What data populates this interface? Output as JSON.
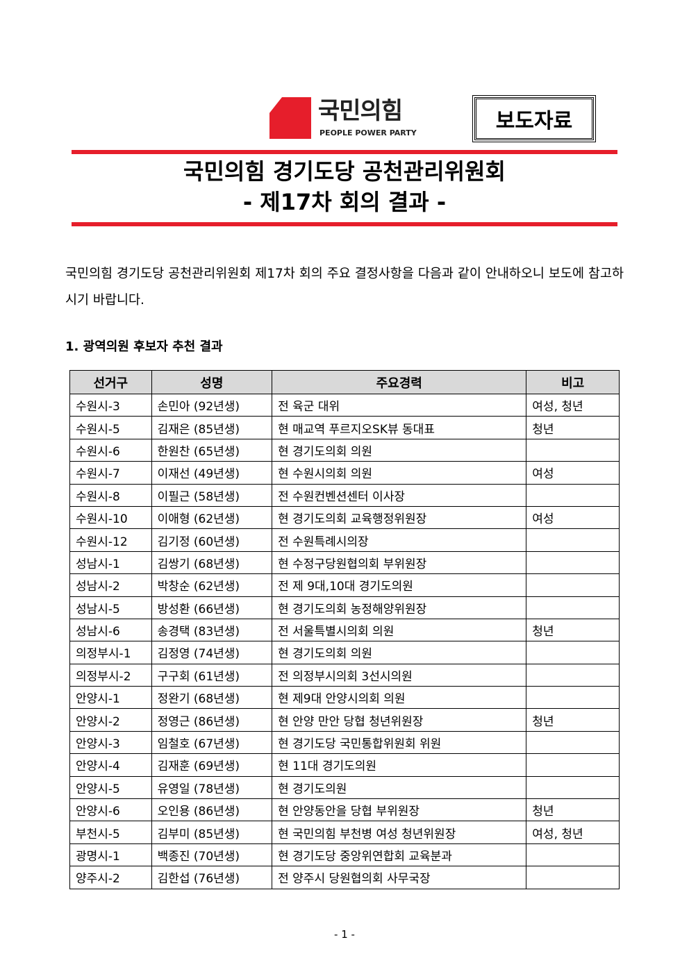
{
  "logo": {
    "name_kr": "국민의힘",
    "name_en": "PEOPLE POWER PARTY",
    "color": "#e61e2b"
  },
  "press_label": "보도자료",
  "title": {
    "line1": "국민의힘 경기도당 공천관리위원회",
    "line2": "- 제17차 회의 결과 -"
  },
  "intro": "국민의힘 경기도당 공천관리위원회 제17차 회의 주요 결정사항을 다음과 같이 안내하오니 보도에 참고하시기 바랍니다.",
  "section_heading": "1. 광역의원 후보자 추천 결과",
  "table": {
    "headers": [
      "선거구",
      "성명",
      "주요경력",
      "비고"
    ],
    "rows": [
      [
        "수원시-3",
        "손민아 (92년생)",
        "전 육군 대위",
        "여성, 청년"
      ],
      [
        "수원시-5",
        "김재은 (85년생)",
        "현 매교역 푸르지오SK뷰 동대표",
        "청년"
      ],
      [
        "수원시-6",
        "한원찬 (65년생)",
        "현 경기도의회 의원",
        ""
      ],
      [
        "수원시-7",
        "이재선 (49년생)",
        "현 수원시의회 의원",
        "여성"
      ],
      [
        "수원시-8",
        "이필근 (58년생)",
        "전 수원컨벤션센터 이사장",
        ""
      ],
      [
        "수원시-10",
        "이애형 (62년생)",
        "현 경기도의회 교육행정위원장",
        "여성"
      ],
      [
        "수원시-12",
        "김기정 (60년생)",
        "전 수원특례시의장",
        ""
      ],
      [
        "성남시-1",
        "김쌍기 (68년생)",
        "현 수정구당원협의회 부위원장",
        ""
      ],
      [
        "성남시-2",
        "박창순 (62년생)",
        "전 제 9대,10대 경기도의원",
        ""
      ],
      [
        "성남시-5",
        "방성환 (66년생)",
        "현 경기도의회 농정해양위원장",
        ""
      ],
      [
        "성남시-6",
        "송경택 (83년생)",
        "전 서울특별시의회 의원",
        "청년"
      ],
      [
        "의정부시-1",
        "김정영 (74년생)",
        "현 경기도의회 의원",
        ""
      ],
      [
        "의정부시-2",
        "구구회 (61년생)",
        "전 의정부시의회 3선시의원",
        ""
      ],
      [
        "안양시-1",
        "정완기 (68년생)",
        "현 제9대 안양시의회 의원",
        ""
      ],
      [
        "안양시-2",
        "정영근 (86년생)",
        "현 안양 만안 당협 청년위원장",
        "청년"
      ],
      [
        "안양시-3",
        "임철호 (67년생)",
        "현 경기도당 국민통합위원회 위원",
        ""
      ],
      [
        "안양시-4",
        "김재훈 (69년생)",
        "현 11대 경기도의원",
        ""
      ],
      [
        "안양시-5",
        "유영일 (78년생)",
        "현 경기도의원",
        ""
      ],
      [
        "안양시-6",
        "오인용 (86년생)",
        "현 안양동안을 당협 부위원장",
        "청년"
      ],
      [
        "부천시-5",
        "김부미 (85년생)",
        "현 국민의힘 부천병 여성 청년위원장",
        "여성, 청년"
      ],
      [
        "광명시-1",
        "백종진 (70년생)",
        "현 경기도당 중앙위연합회 교육분과",
        ""
      ],
      [
        "양주시-2",
        "김한섭 (76년생)",
        "전 양주시 당원협의회 사무국장",
        ""
      ]
    ]
  },
  "page_number": "- 1 -"
}
